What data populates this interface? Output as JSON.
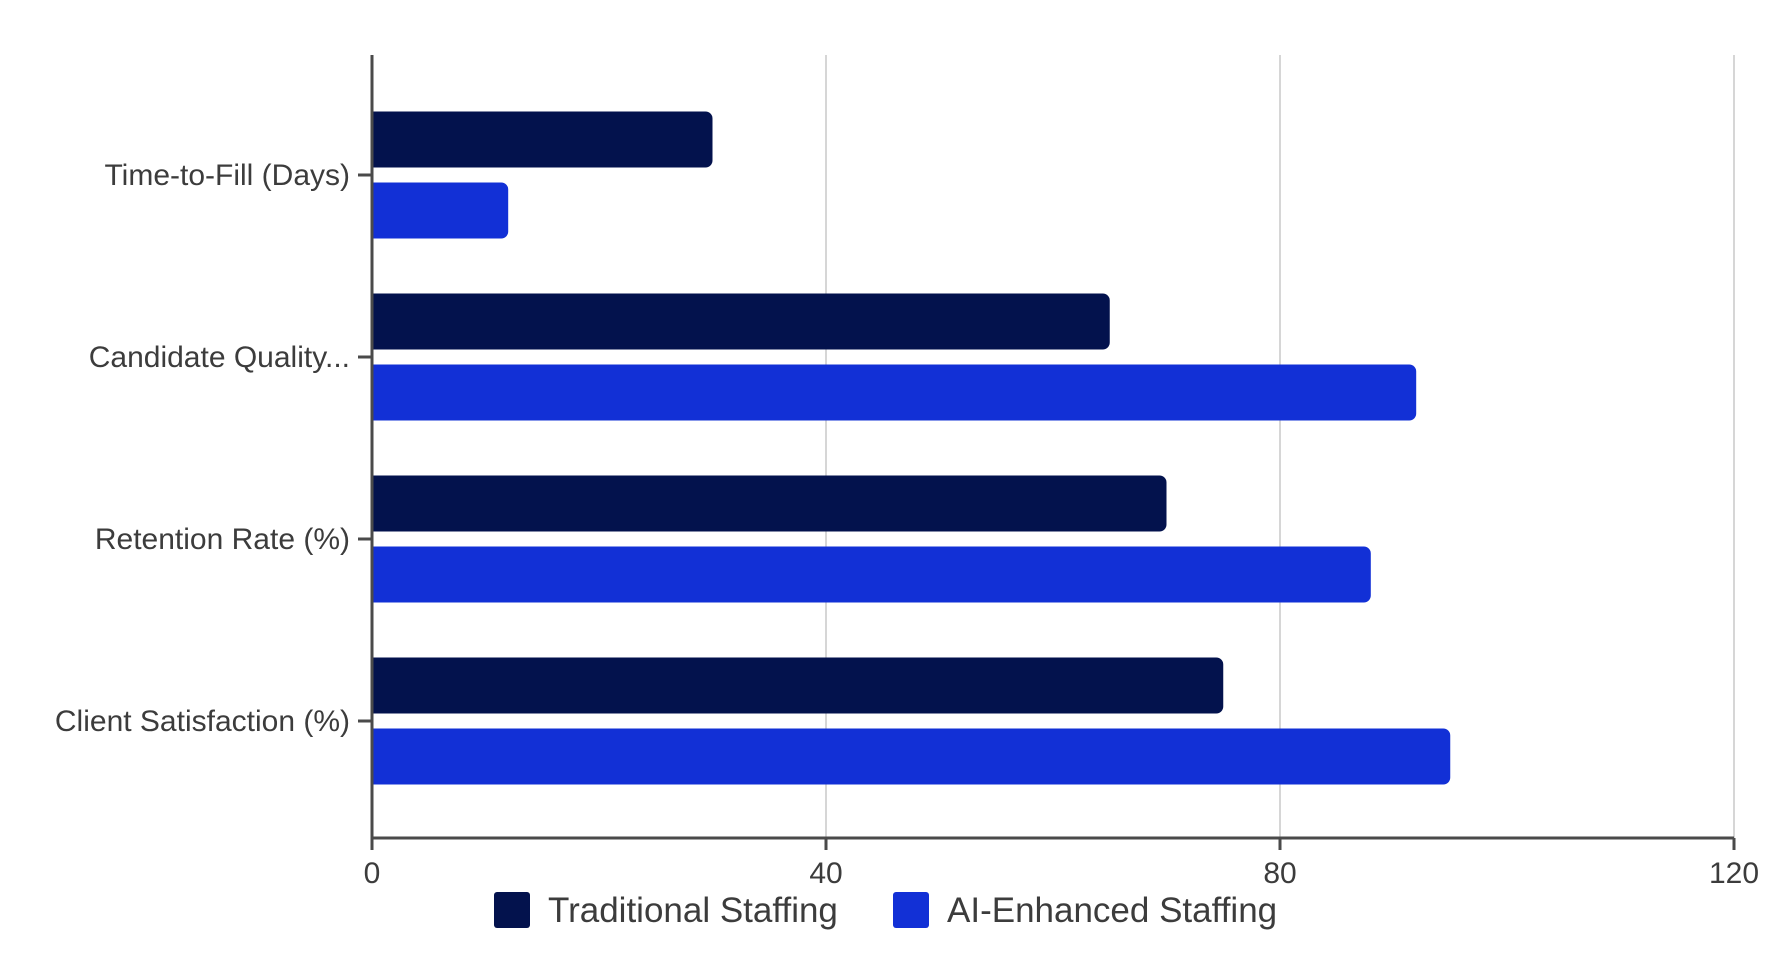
{
  "chart_data": {
    "type": "bar",
    "orientation": "horizontal",
    "title": "",
    "xlabel": "",
    "ylabel": "",
    "categories": [
      "Time-to-Fill (Days)",
      "Candidate Quality...",
      "Retention Rate (%)",
      "Client Satisfaction (%)"
    ],
    "series": [
      {
        "name": "Traditional Staffing",
        "color": "#03124d",
        "values": [
          30,
          65,
          70,
          75
        ]
      },
      {
        "name": "AI-Enhanced Staffing",
        "color": "#1230d6",
        "values": [
          12,
          92,
          88,
          95
        ]
      }
    ],
    "xlim": [
      0,
      120
    ],
    "xticks": [
      0,
      40,
      80,
      120
    ],
    "xtick_labels": [
      "0",
      "40",
      "80",
      "120"
    ],
    "grid": true,
    "legend_position": "bottom"
  }
}
